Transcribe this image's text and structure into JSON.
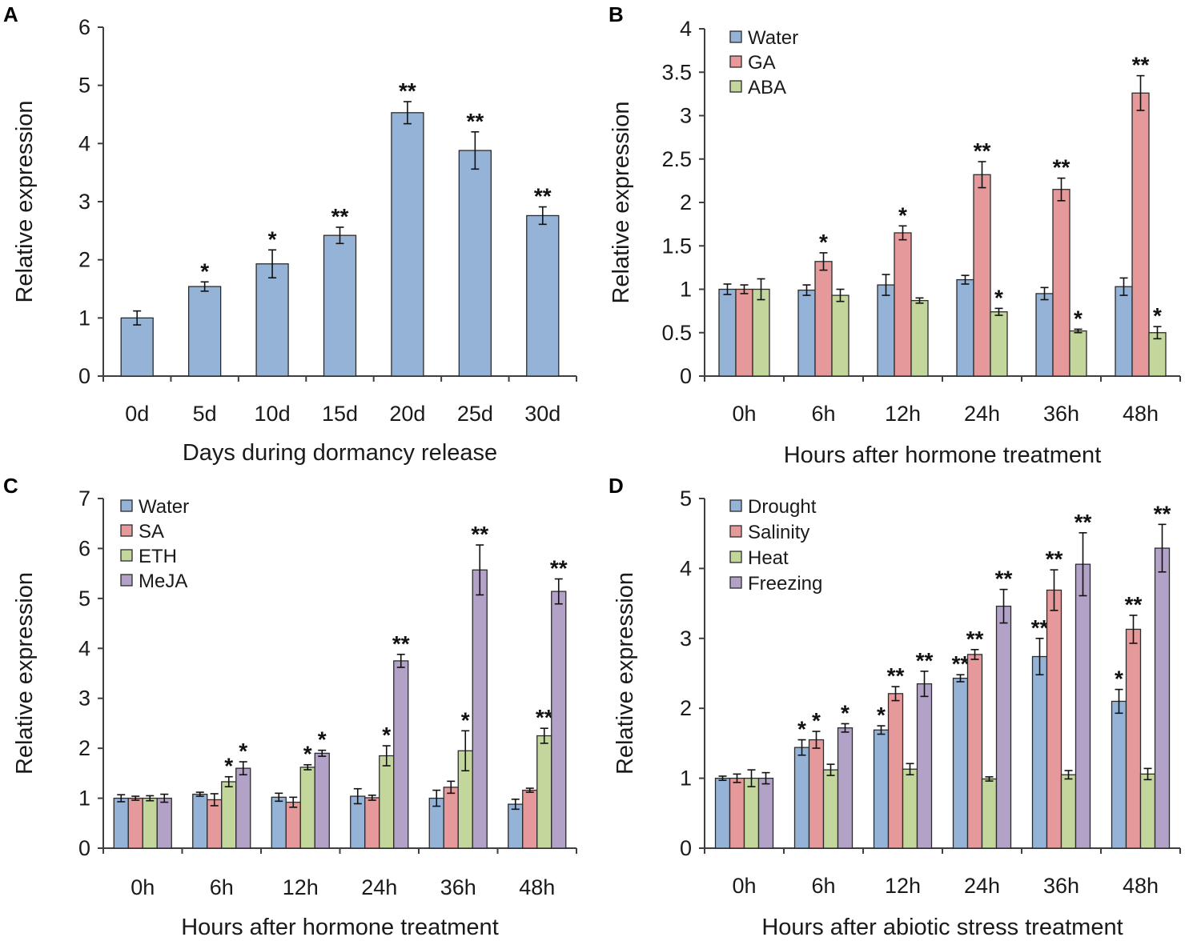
{
  "chart_data": [
    {
      "panel": "A",
      "type": "bar",
      "ylabel": "Relative expression",
      "xlabel": "Days during  dormancy release",
      "ylim": [
        0,
        6
      ],
      "yticks": [
        "0",
        "1",
        "2",
        "3",
        "4",
        "5",
        "6"
      ],
      "categories": [
        "0d",
        "5d",
        "10d",
        "15d",
        "20d",
        "25d",
        "30d"
      ],
      "legend": false,
      "series": [
        {
          "name": "Relative expression",
          "color": "#95b3d7",
          "values": [
            1.0,
            1.54,
            1.93,
            2.42,
            4.53,
            3.88,
            2.76
          ],
          "errors": [
            0.12,
            0.08,
            0.24,
            0.14,
            0.19,
            0.32,
            0.15
          ],
          "sig": [
            "",
            "*",
            "*",
            "**",
            "**",
            "**",
            "**"
          ]
        }
      ]
    },
    {
      "panel": "B",
      "type": "bar",
      "ylabel": "Relative expression",
      "xlabel": "Hours after hormone treatment",
      "ylim": [
        0,
        4
      ],
      "yticks": [
        "0",
        "0.5",
        "1",
        "1.5",
        "2",
        "2.5",
        "3",
        "3.5",
        "4"
      ],
      "categories": [
        "0h",
        "6h",
        "12h",
        "24h",
        "36h",
        "48h"
      ],
      "legend": true,
      "series": [
        {
          "name": "Water",
          "color": "#95b3d7",
          "values": [
            1.0,
            0.99,
            1.05,
            1.11,
            0.95,
            1.03
          ],
          "errors": [
            0.06,
            0.06,
            0.12,
            0.05,
            0.07,
            0.1
          ],
          "sig": [
            "",
            "",
            "",
            "",
            "",
            ""
          ]
        },
        {
          "name": "GA",
          "color": "#e6999a",
          "values": [
            1.0,
            1.32,
            1.65,
            2.32,
            2.15,
            3.26
          ],
          "errors": [
            0.05,
            0.1,
            0.08,
            0.15,
            0.13,
            0.2
          ],
          "sig": [
            "",
            "*",
            "*",
            "**",
            "**",
            "**"
          ]
        },
        {
          "name": "ABA",
          "color": "#c3d69b",
          "values": [
            1.0,
            0.93,
            0.87,
            0.74,
            0.52,
            0.5
          ],
          "errors": [
            0.12,
            0.07,
            0.03,
            0.04,
            0.02,
            0.07
          ],
          "sig": [
            "",
            "",
            "",
            "*",
            "*",
            "*"
          ]
        }
      ]
    },
    {
      "panel": "C",
      "type": "bar",
      "ylabel": "Relative expression",
      "xlabel": "Hours after hormone treatment",
      "ylim": [
        0,
        7
      ],
      "yticks": [
        "0",
        "1",
        "2",
        "3",
        "4",
        "5",
        "6",
        "7"
      ],
      "categories": [
        "0h",
        "6h",
        "12h",
        "24h",
        "36h",
        "48h"
      ],
      "legend": true,
      "series": [
        {
          "name": "Water",
          "color": "#95b3d7",
          "values": [
            1.0,
            1.08,
            1.02,
            1.04,
            1.0,
            0.88
          ],
          "errors": [
            0.07,
            0.04,
            0.08,
            0.15,
            0.16,
            0.1
          ],
          "sig": [
            "",
            "",
            "",
            "",
            "",
            ""
          ]
        },
        {
          "name": "SA",
          "color": "#e6999a",
          "values": [
            1.0,
            0.97,
            0.92,
            1.01,
            1.22,
            1.16
          ],
          "errors": [
            0.04,
            0.12,
            0.1,
            0.05,
            0.12,
            0.04
          ],
          "sig": [
            "",
            "",
            "",
            "",
            "",
            ""
          ]
        },
        {
          "name": "ETH",
          "color": "#c3d69b",
          "values": [
            1.0,
            1.33,
            1.62,
            1.85,
            1.95,
            2.25
          ],
          "errors": [
            0.05,
            0.1,
            0.05,
            0.2,
            0.4,
            0.15
          ],
          "sig": [
            "",
            "*",
            "*",
            "*",
            "*",
            "**"
          ]
        },
        {
          "name": "MeJA",
          "color": "#b3a2c7",
          "values": [
            1.0,
            1.6,
            1.9,
            3.75,
            5.57,
            5.14
          ],
          "errors": [
            0.08,
            0.13,
            0.06,
            0.13,
            0.5,
            0.25
          ],
          "sig": [
            "",
            "*",
            "*",
            "**",
            "**",
            "**"
          ]
        }
      ]
    },
    {
      "panel": "D",
      "type": "bar",
      "ylabel": "Relative expression",
      "xlabel": "Hours after abiotic stress treatment",
      "ylim": [
        0,
        5
      ],
      "yticks": [
        "0",
        "1",
        "2",
        "3",
        "4",
        "5"
      ],
      "categories": [
        "0h",
        "6h",
        "12h",
        "24h",
        "36h",
        "48h"
      ],
      "legend": true,
      "series": [
        {
          "name": "Drought",
          "color": "#95b3d7",
          "values": [
            1.0,
            1.44,
            1.69,
            2.43,
            2.74,
            2.1
          ],
          "errors": [
            0.03,
            0.11,
            0.06,
            0.05,
            0.26,
            0.17
          ],
          "sig": [
            "",
            "*",
            "*",
            "**",
            "**",
            "*"
          ]
        },
        {
          "name": "Salinity",
          "color": "#e6999a",
          "values": [
            1.0,
            1.55,
            2.21,
            2.77,
            3.69,
            3.13
          ],
          "errors": [
            0.06,
            0.12,
            0.1,
            0.07,
            0.29,
            0.2
          ],
          "sig": [
            "",
            "*",
            "**",
            "**",
            "**",
            "**"
          ]
        },
        {
          "name": "Heat",
          "color": "#c3d69b",
          "values": [
            1.0,
            1.12,
            1.13,
            0.99,
            1.05,
            1.06
          ],
          "errors": [
            0.12,
            0.08,
            0.08,
            0.03,
            0.06,
            0.08
          ],
          "sig": [
            "",
            "",
            "",
            "",
            "",
            ""
          ]
        },
        {
          "name": "Freezing",
          "color": "#b3a2c7",
          "values": [
            1.0,
            1.72,
            2.35,
            3.46,
            4.06,
            4.29
          ],
          "errors": [
            0.08,
            0.06,
            0.18,
            0.24,
            0.45,
            0.34
          ],
          "sig": [
            "",
            "*",
            "**",
            "**",
            "**",
            "**"
          ]
        }
      ]
    }
  ]
}
